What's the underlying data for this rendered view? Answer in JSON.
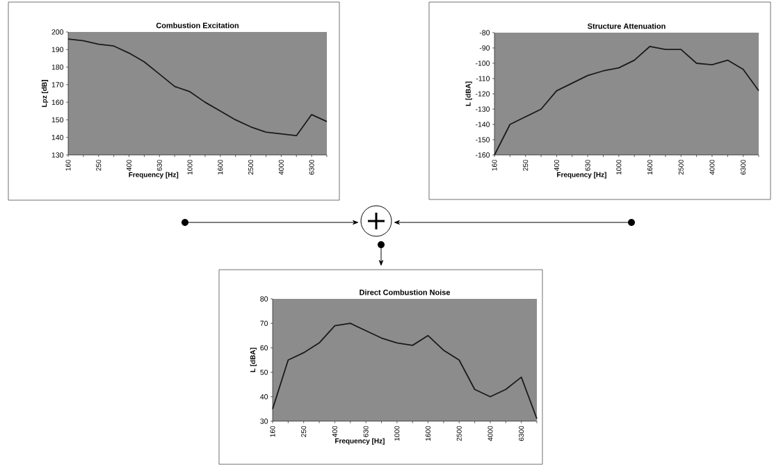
{
  "chart_data": [
    {
      "type": "line",
      "title": "Combustion Excitation",
      "xlabel": "Frequency [Hz]",
      "ylabel": "Lpz [dB]",
      "categories": [
        "160",
        null,
        "250",
        null,
        "400",
        null,
        "630",
        null,
        "1000",
        null,
        "1600",
        null,
        "2500",
        null,
        "4000",
        null,
        "6300",
        null
      ],
      "values": [
        196,
        195,
        193,
        192,
        188,
        183,
        176,
        169,
        166,
        160,
        155,
        150,
        146,
        143,
        142,
        141,
        153,
        149
      ],
      "color": "#1a1a1a",
      "ylim": [
        130,
        200
      ],
      "yticks": [
        130,
        140,
        150,
        160,
        170,
        180,
        190,
        200
      ],
      "grid": false,
      "marker": "none",
      "line_style": "solid"
    },
    {
      "type": "line",
      "title": "Structure Attenuation",
      "xlabel": "Frequency [Hz]",
      "ylabel": "L  [dBA]",
      "categories": [
        "160",
        null,
        "250",
        null,
        "400",
        null,
        "630",
        null,
        "1000",
        null,
        "1600",
        null,
        "2500",
        null,
        "4000",
        null,
        "6300",
        null
      ],
      "values": [
        -160,
        -140,
        -135,
        -130,
        -118,
        -113,
        -108,
        -105,
        -103,
        -98,
        -89,
        -91,
        -91,
        -100,
        -101,
        -98,
        -104,
        -118
      ],
      "color": "#1a1a1a",
      "ylim": [
        -160,
        -80
      ],
      "yticks": [
        -160,
        -150,
        -140,
        -130,
        -120,
        -110,
        -100,
        -90,
        -80
      ],
      "grid": false,
      "marker": "none",
      "line_style": "solid"
    },
    {
      "type": "line",
      "title": "Direct Combustion Noise",
      "xlabel": "Frequency [Hz]",
      "ylabel": "L [dBA]",
      "categories": [
        "160",
        null,
        "250",
        null,
        "400",
        null,
        "630",
        null,
        "1000",
        null,
        "1600",
        null,
        "2500",
        null,
        "4000",
        null,
        "6300",
        null
      ],
      "values": [
        35,
        55,
        58,
        62,
        69,
        70,
        67,
        64,
        62,
        61,
        65,
        59,
        55,
        43,
        40,
        43,
        48,
        31
      ],
      "color": "#1a1a1a",
      "ylim": [
        30,
        80
      ],
      "yticks": [
        30,
        40,
        50,
        60,
        70,
        80
      ],
      "grid": false,
      "marker": "none",
      "line_style": "solid"
    }
  ]
}
